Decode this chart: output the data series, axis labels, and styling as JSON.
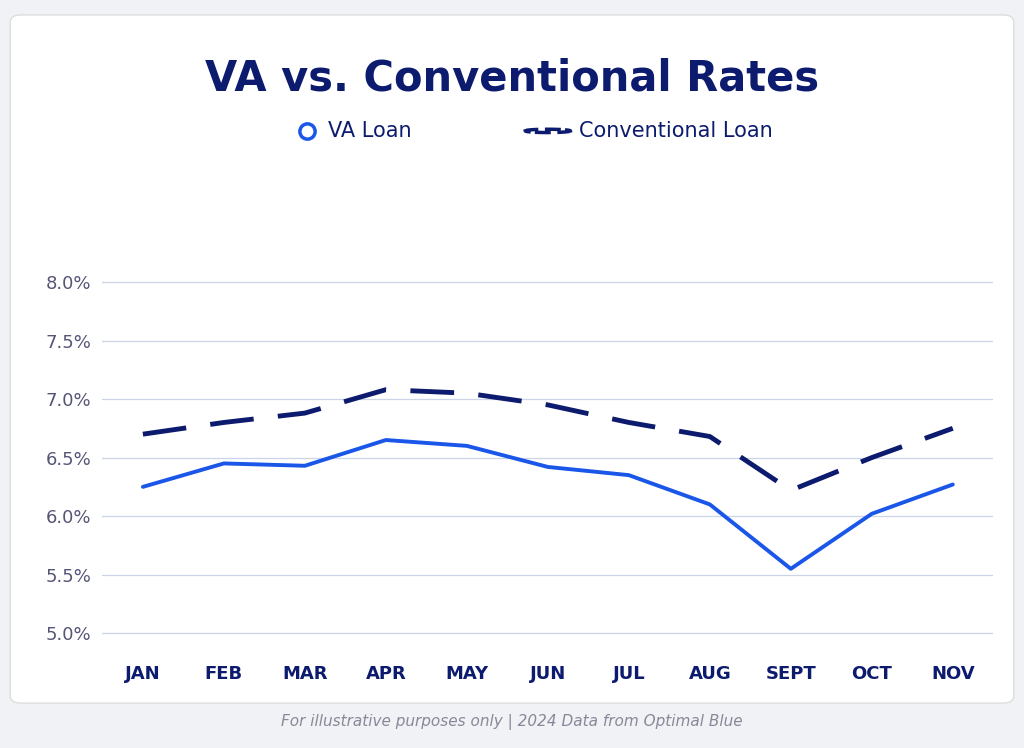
{
  "title": "VA vs. Conventional Rates",
  "months": [
    "JAN",
    "FEB",
    "MAR",
    "APR",
    "MAY",
    "JUN",
    "JUL",
    "AUG",
    "SEPT",
    "OCT",
    "NOV"
  ],
  "va_loan": [
    6.25,
    6.45,
    6.43,
    6.65,
    6.6,
    6.42,
    6.35,
    6.1,
    5.55,
    6.02,
    6.27
  ],
  "conventional_loan": [
    6.7,
    6.8,
    6.88,
    7.08,
    7.05,
    6.95,
    6.8,
    6.68,
    6.22,
    6.5,
    6.75
  ],
  "va_color": "#1a56e8",
  "conv_color": "#0d1b6e",
  "background_color": "#f0f2f5",
  "card_color": "#ffffff",
  "grid_color": "#ccd5e8",
  "ylim": [
    4.85,
    8.3
  ],
  "yticks": [
    5.0,
    5.5,
    6.0,
    6.5,
    7.0,
    7.5,
    8.0
  ],
  "footer_text": "For illustrative purposes only | 2024 Data from Optimal Blue",
  "title_color": "#0d1b6e",
  "tick_color": "#555577",
  "legend_va": "VA Loan",
  "legend_conv": "Conventional Loan"
}
